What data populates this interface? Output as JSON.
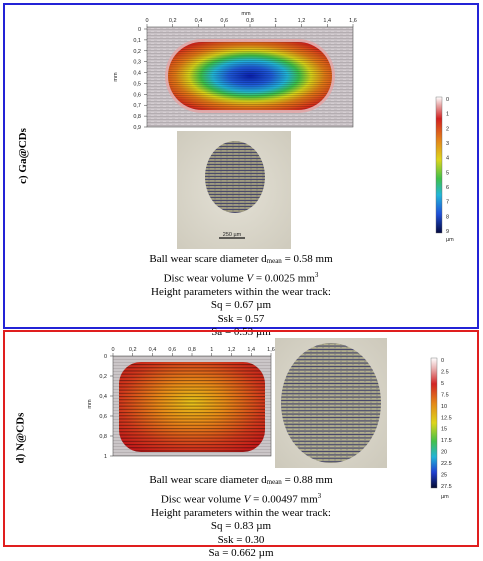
{
  "panel_c": {
    "label": "c) Ga@CDs",
    "map_axis_unit_top": "mm",
    "map_axis_unit_left": "mm",
    "map_x_ticks": [
      "0",
      "0,2",
      "0,4",
      "0,6",
      "0,8",
      "1",
      "1,2",
      "1,4",
      "1,6"
    ],
    "map_y_ticks": [
      "0",
      "0,1",
      "0,2",
      "0,3",
      "0,4",
      "0,5",
      "0,6",
      "0,7",
      "0,8",
      "0,9"
    ],
    "micro_scale": "250 µm",
    "colorbar_ticks": [
      "0",
      "1",
      "2",
      "3",
      "4",
      "5",
      "6",
      "7",
      "8",
      "9"
    ],
    "colorbar_unit": "µm",
    "colors": {
      "border": "#2323d6"
    },
    "caption": {
      "line1_pre": "Ball wear scare diameter d",
      "line1_sub": "mean",
      "line1_post": " = 0.58 mm",
      "line2_pre": "Disc wear volume ",
      "line2_var": "V",
      "line2_post": " = 0.0025 mm",
      "line2_sup": "3",
      "line3": "Height parameters within the wear track:",
      "line4": "Sq = 0.67 µm",
      "line5": "Ssk = 0.57",
      "line6": "Sa = 0.53 µm"
    }
  },
  "panel_d": {
    "label": "d) N@CDs",
    "map_axis_unit_left": "mm",
    "map_x_ticks": [
      "0",
      "0,2",
      "0,4",
      "0,6",
      "0,8",
      "1",
      "1,2",
      "1,4",
      "1,6"
    ],
    "map_y_ticks": [
      "0",
      "0,2",
      "0,4",
      "0,6",
      "0,8",
      "1"
    ],
    "colorbar_ticks": [
      "0",
      "2.5",
      "5",
      "7.5",
      "10",
      "12.5",
      "15",
      "17.5",
      "20",
      "22.5",
      "25",
      "27.5"
    ],
    "colorbar_unit": "µm",
    "colors": {
      "border": "#e01e1e"
    },
    "caption": {
      "line1_pre": "Ball wear scare diameter d",
      "line1_sub": "mean",
      "line1_post": " = 0.88 mm",
      "line2_pre": "Disc wear volume ",
      "line2_var": "V",
      "line2_post": " = 0.00497 mm",
      "line2_sup": "3",
      "line3": "Height parameters within the wear track:",
      "line4": "Sq = 0.83 µm",
      "line5": "Ssk = 0.30",
      "line6": "Sa = 0.662 µm"
    }
  }
}
